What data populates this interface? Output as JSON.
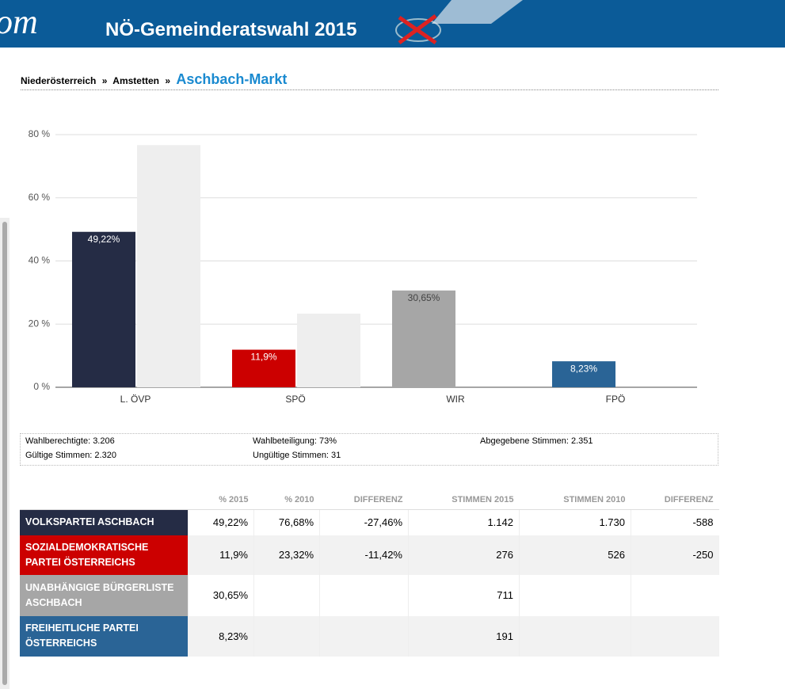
{
  "header": {
    "logo": "om",
    "title": "NÖ-Gemeinderatswahl 2015"
  },
  "breadcrumb": {
    "items": [
      "Niederösterreich",
      "Amstetten"
    ],
    "separator": "»",
    "current": "Aschbach-Markt"
  },
  "chart_data": {
    "type": "bar",
    "categories": [
      "L. ÖVP",
      "SPÖ",
      "WIR",
      "FPÖ"
    ],
    "series": [
      {
        "colors": [
          "#252c45",
          "#cc0000",
          "#a6a6a6",
          "#2a6496"
        ],
        "values": [
          49.22,
          11.9,
          30.65,
          8.23
        ],
        "value_labels": [
          "49,22%",
          "11,9%",
          "30,65%",
          "8,23%"
        ],
        "value_label_colors": [
          "#ffffff",
          "#ffffff",
          "#444444",
          "#ffffff"
        ]
      },
      {
        "color": "#eeeeee",
        "values": [
          76.68,
          23.32,
          null,
          null
        ]
      }
    ],
    "ylim": [
      0,
      80
    ],
    "yticks": [
      {
        "value": 0,
        "label": "0 %"
      },
      {
        "value": 20,
        "label": "20 %"
      },
      {
        "value": 40,
        "label": "40 %"
      },
      {
        "value": 60,
        "label": "60 %"
      },
      {
        "value": 80,
        "label": "80 %"
      }
    ],
    "grid": true
  },
  "stats": [
    [
      "Wahlberechtigte: 3.206",
      "Wahlbeteiligung: 73%",
      "Abgegebene Stimmen: 2.351"
    ],
    [
      "Gültige Stimmen: 2.320",
      "Ungültige Stimmen: 31"
    ]
  ],
  "table": {
    "header": [
      "% 2015",
      "% 2010",
      "DIFFERENZ",
      "STIMMEN 2015",
      "STIMMEN 2010",
      "DIFFERENZ"
    ],
    "row_colors": [
      "#252c45",
      "#cc0000",
      "#a6a6a6",
      "#2a6496"
    ],
    "rows": [
      [
        "VOLKSPARTEI ASCHBACH",
        "49,22%",
        "76,68%",
        "-27,46%",
        "1.142",
        "1.730",
        "-588"
      ],
      [
        "SOZIALDEMOKRATISCHE PARTEI ÖSTERREICHS",
        "11,9%",
        "23,32%",
        "-11,42%",
        "276",
        "526",
        "-250"
      ],
      [
        "UNABHÄNGIGE BÜRGERLISTE ASCHBACH",
        "30,65%",
        null,
        null,
        "711",
        null,
        null
      ],
      [
        "FREIHEITLICHE PARTEI ÖSTERREICHS",
        "8,23%",
        null,
        null,
        "191",
        null,
        null
      ]
    ]
  }
}
